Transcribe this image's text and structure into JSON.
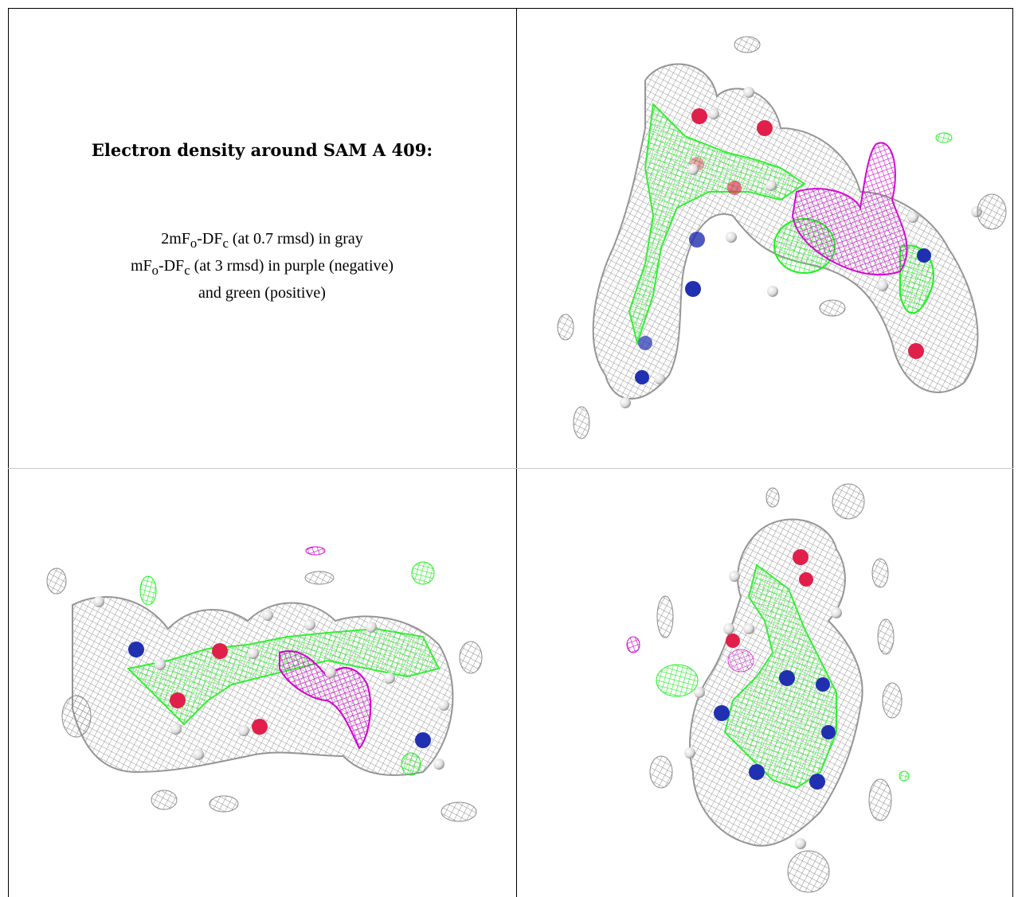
{
  "figure": {
    "title": "Electron density around SAM A 409:",
    "legend": [
      {
        "pre": "2mF",
        "sub1": "o",
        "mid": "-DF",
        "sub2": "c",
        "post": " (at 0.7 rmsd) in gray"
      },
      {
        "pre": "mF",
        "sub1": "o",
        "mid": "-DF",
        "sub2": "c",
        "post": " (at 3 rmsd) in purple (negative)"
      },
      {
        "pre": "",
        "sub1": "",
        "mid": "and green (positive)",
        "sub2": "",
        "post": ""
      }
    ],
    "colors": {
      "mesh_2fofc": "#8c8c8c",
      "positive_difference": "#22ee22",
      "negative_difference": "#d000d0",
      "oxygen": "#e0204a",
      "nitrogen": "#2030b0",
      "hydrogen": "#f0f0f0",
      "carbon": "#33ee33"
    },
    "panels": [
      {
        "name": "view-top-right"
      },
      {
        "name": "view-bottom-left"
      },
      {
        "name": "view-bottom-right"
      }
    ]
  }
}
